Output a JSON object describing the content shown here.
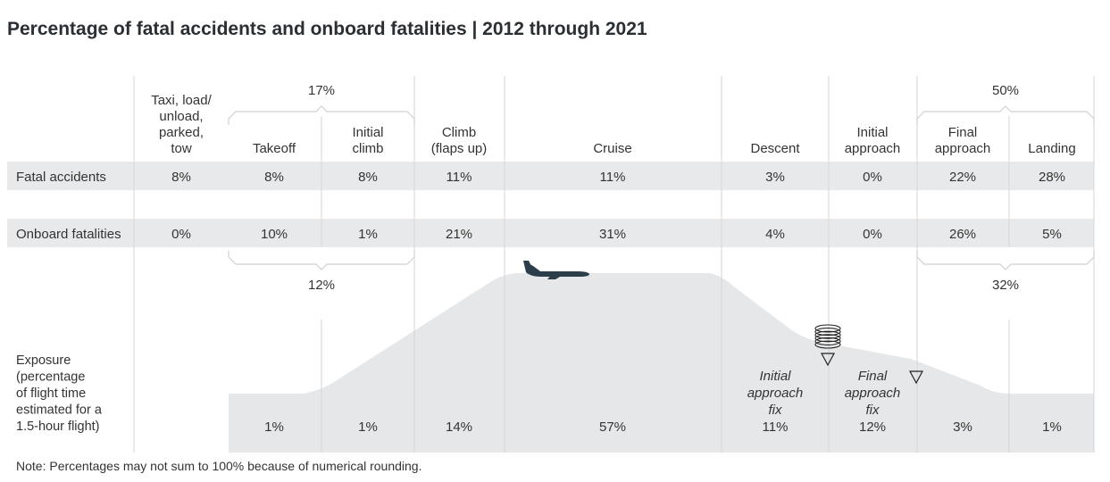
{
  "chart_data": {
    "type": "table",
    "title": "Percentage of fatal accidents and onboard fatalities | 2012 through 2021",
    "note": "Note: Percentages may not sum to 100% because of numerical rounding.",
    "phases": [
      [
        "Taxi, load/",
        "unload,",
        "parked,",
        "tow"
      ],
      [
        "Takeoff"
      ],
      [
        "Initial",
        "climb"
      ],
      [
        "Climb",
        "(flaps up)"
      ],
      [
        "Cruise"
      ],
      [
        "Descent"
      ],
      [
        "Initial",
        "approach"
      ],
      [
        "Final",
        "approach"
      ],
      [
        "Landing"
      ]
    ],
    "rows": [
      {
        "label": "Fatal accidents",
        "values": [
          "8%",
          "8%",
          "8%",
          "11%",
          "11%",
          "3%",
          "0%",
          "22%",
          "28%"
        ]
      },
      {
        "label": "Onboard fatalities",
        "values": [
          "0%",
          "10%",
          "1%",
          "21%",
          "31%",
          "4%",
          "0%",
          "26%",
          "5%"
        ]
      }
    ],
    "exposure": {
      "label": [
        "Exposure",
        "(percentage",
        "of flight time",
        "estimated for a",
        "1.5-hour flight)"
      ],
      "values": [
        "",
        "1%",
        "1%",
        "14%",
        "57%",
        "11%",
        "12%",
        "3%",
        "1%"
      ]
    },
    "groups": {
      "top_left": "17%",
      "top_right": "50%",
      "bottom_left": "12%",
      "bottom_right": "32%"
    },
    "fix_labels": {
      "initial": [
        "Initial",
        "approach",
        "fix"
      ],
      "final": [
        "Final",
        "approach",
        "fix"
      ]
    },
    "colors": {
      "band": "#e8e9ea",
      "profile": "#e6e7e8",
      "bracket": "#cfd1d3",
      "divider": "#d4d6d8",
      "text": "#333333",
      "title": "#2b2f33",
      "aircraft": "#2c3e4a"
    },
    "icons": [
      "airplane-icon",
      "holding-pattern-icon",
      "approach-fix-icon"
    ]
  }
}
